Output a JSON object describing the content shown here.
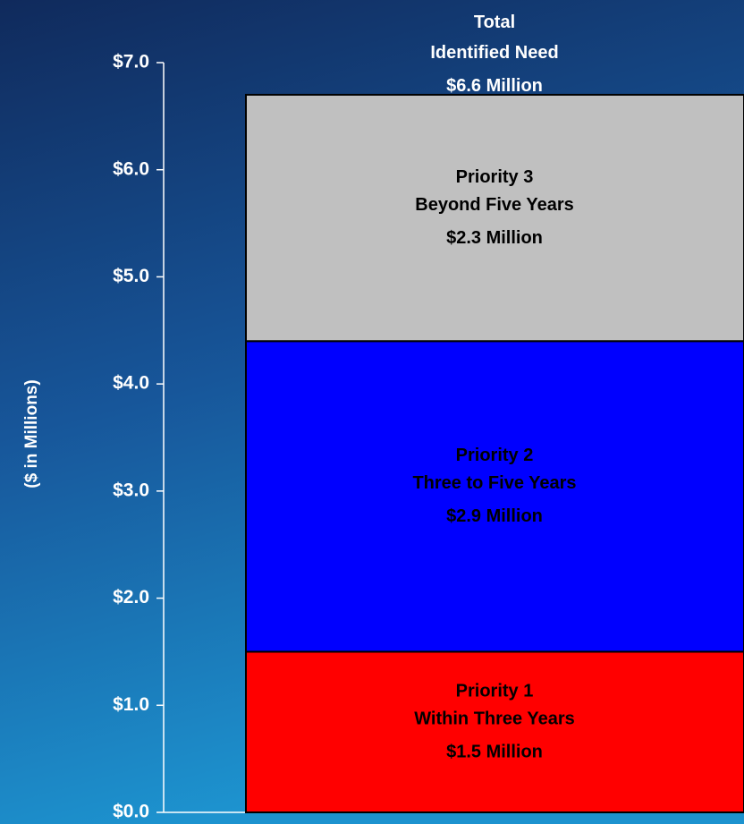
{
  "chart_data": {
    "type": "stacked_bar",
    "y_axis_label": "($ in Millions)",
    "ylim": [
      0,
      7
    ],
    "yticks": [
      {
        "value": 0,
        "label": "$0.0"
      },
      {
        "value": 1,
        "label": "$1.0"
      },
      {
        "value": 2,
        "label": "$2.0"
      },
      {
        "value": 3,
        "label": "$3.0"
      },
      {
        "value": 4,
        "label": "$4.0"
      },
      {
        "value": 5,
        "label": "$5.0"
      },
      {
        "value": 6,
        "label": "$6.0"
      },
      {
        "value": 7,
        "label": "$7.0"
      }
    ],
    "series": [
      {
        "name": "Priority 1",
        "subtitle": "Within Three Years",
        "color": "#ff0000",
        "values": [
          1.5
        ],
        "value_labels": [
          "$1.5  Million"
        ]
      },
      {
        "name": "Priority 2",
        "subtitle": "Three to Five Years",
        "color": "#0000ff",
        "values": [
          2.9
        ],
        "value_labels": [
          "$2.9  Million"
        ]
      },
      {
        "name": "Priority 3",
        "subtitle": "Beyond Five Years",
        "color": "#c0c0c0",
        "values": [
          2.3
        ],
        "value_labels": [
          "$2.3  Million"
        ]
      }
    ],
    "total": {
      "title": "Total",
      "subtitle": "Identified Need",
      "value": 6.6,
      "value_label": "$6.6  Million"
    }
  }
}
